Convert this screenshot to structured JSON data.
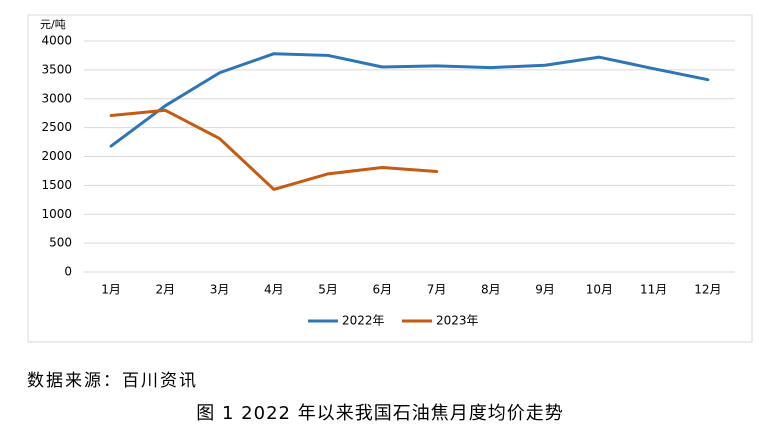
{
  "chart_data": {
    "type": "line",
    "y_axis_label": "元/吨",
    "categories": [
      "1月",
      "2月",
      "3月",
      "4月",
      "5月",
      "6月",
      "7月",
      "8月",
      "9月",
      "10月",
      "11月",
      "12月"
    ],
    "series": [
      {
        "name": "2022年",
        "color": "#2e75b6",
        "values": [
          2180,
          2880,
          3450,
          3780,
          3750,
          3550,
          3570,
          3540,
          3580,
          3720,
          3520,
          3330
        ]
      },
      {
        "name": "2023年",
        "color": "#c55a11",
        "values": [
          2710,
          2800,
          2310,
          1430,
          1700,
          1810,
          1740,
          null,
          null,
          null,
          null,
          null
        ]
      }
    ],
    "ylim": [
      0,
      4000
    ],
    "yticks": [
      0,
      500,
      1000,
      1500,
      2000,
      2500,
      3000,
      3500,
      4000
    ],
    "grid": true,
    "legend": "bottom",
    "source": "数据来源：百川资讯",
    "caption": "图 1 2022 年以来我国石油焦月度均价走势"
  }
}
